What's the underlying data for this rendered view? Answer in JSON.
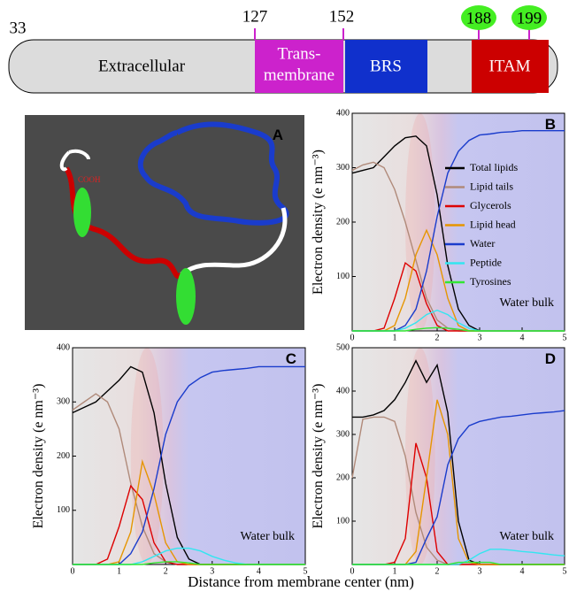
{
  "domain_diagram": {
    "positions": [
      "33",
      "127",
      "152",
      "188",
      "199"
    ],
    "extracellular": "Extracellular",
    "transmembrane": [
      "Trans-",
      "membrane"
    ],
    "brs": "BRS",
    "itam": "ITAM"
  },
  "panel_a": {
    "label": "A",
    "annotation": "COOH"
  },
  "shared_x_label": "Distance from membrane center (nm)",
  "chart_data": [
    {
      "type": "line",
      "panel_label": "B",
      "y_label": "Electron density (e nm⁻³)",
      "annotation": "Water bulk",
      "legend": "right",
      "x": [
        0,
        0.25,
        0.5,
        0.75,
        1,
        1.25,
        1.5,
        1.75,
        2,
        2.25,
        2.5,
        2.75,
        3,
        3.25,
        3.5,
        3.75,
        4,
        4.25,
        4.5,
        4.75,
        5
      ],
      "xlim": [
        0,
        5
      ],
      "xticks": [
        0,
        1,
        2,
        3,
        4,
        5
      ],
      "ylim": [
        0,
        400
      ],
      "yticks": [
        100,
        200,
        300,
        400
      ],
      "series": [
        {
          "name": "Total lipids",
          "color": "#000000",
          "values": [
            290,
            295,
            300,
            320,
            340,
            355,
            358,
            340,
            250,
            120,
            40,
            10,
            0,
            0,
            0,
            0,
            0,
            0,
            0,
            0,
            0
          ]
        },
        {
          "name": "Lipid tails",
          "color": "#b08a7a",
          "values": [
            295,
            305,
            310,
            300,
            260,
            200,
            130,
            60,
            20,
            5,
            0,
            0,
            0,
            0,
            0,
            0,
            0,
            0,
            0,
            0,
            0
          ]
        },
        {
          "name": "Glycerols",
          "color": "#dd0000",
          "values": [
            0,
            0,
            0,
            5,
            60,
            125,
            110,
            50,
            10,
            0,
            0,
            0,
            0,
            0,
            0,
            0,
            0,
            0,
            0,
            0,
            0
          ]
        },
        {
          "name": "Lipid head",
          "color": "#e69500",
          "values": [
            0,
            0,
            0,
            0,
            10,
            60,
            140,
            185,
            140,
            60,
            10,
            0,
            0,
            0,
            0,
            0,
            0,
            0,
            0,
            0,
            0
          ]
        },
        {
          "name": "Water",
          "color": "#1a3ccc",
          "values": [
            0,
            0,
            0,
            0,
            0,
            10,
            40,
            110,
            210,
            290,
            330,
            350,
            360,
            362,
            365,
            366,
            368,
            368,
            368,
            368,
            368
          ]
        },
        {
          "name": "Peptide",
          "color": "#33e6f0",
          "values": [
            0,
            0,
            0,
            0,
            0,
            5,
            15,
            30,
            38,
            30,
            15,
            5,
            0,
            0,
            0,
            0,
            0,
            0,
            0,
            0,
            0
          ]
        },
        {
          "name": "Tyrosines",
          "color": "#33e633",
          "values": [
            0,
            0,
            0,
            0,
            0,
            0,
            3,
            5,
            6,
            5,
            3,
            0,
            0,
            0,
            0,
            0,
            0,
            0,
            0,
            0,
            0
          ]
        }
      ]
    },
    {
      "type": "line",
      "panel_label": "C",
      "y_label": "Electron density (e nm⁻³)",
      "annotation": "Water bulk",
      "legend": false,
      "x": [
        0,
        0.25,
        0.5,
        0.75,
        1,
        1.25,
        1.5,
        1.75,
        2,
        2.25,
        2.5,
        2.75,
        3,
        3.25,
        3.5,
        3.75,
        4,
        4.25,
        4.5,
        4.75,
        5
      ],
      "xlim": [
        0,
        5
      ],
      "xticks": [
        0,
        1,
        2,
        3,
        4,
        5
      ],
      "ylim": [
        0,
        400
      ],
      "yticks": [
        100,
        200,
        300,
        400
      ],
      "series": [
        {
          "color": "#000000",
          "values": [
            280,
            290,
            300,
            320,
            340,
            365,
            355,
            280,
            150,
            50,
            10,
            0,
            0,
            0,
            0,
            0,
            0,
            0,
            0,
            0,
            0
          ]
        },
        {
          "color": "#b08a7a",
          "values": [
            285,
            300,
            315,
            300,
            250,
            150,
            70,
            20,
            5,
            0,
            0,
            0,
            0,
            0,
            0,
            0,
            0,
            0,
            0,
            0,
            0
          ]
        },
        {
          "color": "#dd0000",
          "values": [
            0,
            0,
            0,
            10,
            70,
            145,
            120,
            40,
            5,
            0,
            0,
            0,
            0,
            0,
            0,
            0,
            0,
            0,
            0,
            0,
            0
          ]
        },
        {
          "color": "#e69500",
          "values": [
            0,
            0,
            0,
            0,
            5,
            60,
            190,
            130,
            40,
            5,
            0,
            0,
            0,
            0,
            0,
            0,
            0,
            0,
            0,
            0,
            0
          ]
        },
        {
          "color": "#1a3ccc",
          "values": [
            0,
            0,
            0,
            0,
            0,
            20,
            60,
            140,
            240,
            300,
            330,
            345,
            355,
            358,
            360,
            362,
            365,
            365,
            365,
            365,
            365
          ]
        },
        {
          "color": "#33e6f0",
          "values": [
            0,
            0,
            0,
            0,
            0,
            0,
            5,
            15,
            25,
            30,
            30,
            25,
            15,
            8,
            3,
            0,
            0,
            0,
            0,
            0,
            0
          ]
        },
        {
          "color": "#33e633",
          "values": [
            0,
            0,
            0,
            0,
            0,
            0,
            0,
            3,
            5,
            5,
            3,
            0,
            0,
            0,
            0,
            0,
            0,
            0,
            0,
            0,
            0
          ]
        }
      ]
    },
    {
      "type": "line",
      "panel_label": "D",
      "y_label": "Electron density (e nm⁻³)",
      "annotation": "Water bulk",
      "legend": false,
      "x": [
        0,
        0.25,
        0.5,
        0.75,
        1,
        1.25,
        1.5,
        1.75,
        2,
        2.25,
        2.5,
        2.75,
        3,
        3.25,
        3.5,
        3.75,
        4,
        4.25,
        4.5,
        4.75,
        5
      ],
      "xlim": [
        0,
        5
      ],
      "xticks": [
        0,
        1,
        2,
        3,
        4,
        5
      ],
      "ylim": [
        0,
        500
      ],
      "yticks": [
        100,
        200,
        300,
        400,
        500
      ],
      "series": [
        {
          "color": "#000000",
          "values": [
            340,
            340,
            345,
            355,
            380,
            420,
            470,
            420,
            460,
            350,
            100,
            10,
            0,
            0,
            0,
            0,
            0,
            0,
            0,
            0,
            0
          ]
        },
        {
          "color": "#b08a7a",
          "values": [
            200,
            335,
            340,
            340,
            330,
            250,
            120,
            40,
            10,
            0,
            0,
            0,
            0,
            0,
            0,
            0,
            0,
            0,
            0,
            0,
            0
          ]
        },
        {
          "color": "#dd0000",
          "values": [
            0,
            0,
            0,
            0,
            5,
            60,
            280,
            200,
            30,
            0,
            0,
            0,
            0,
            0,
            0,
            0,
            0,
            0,
            0,
            0,
            0
          ]
        },
        {
          "color": "#e69500",
          "values": [
            0,
            0,
            0,
            0,
            0,
            0,
            30,
            200,
            380,
            300,
            60,
            5,
            0,
            0,
            0,
            0,
            0,
            0,
            0,
            0,
            0
          ]
        },
        {
          "color": "#1a3ccc",
          "values": [
            0,
            0,
            0,
            0,
            0,
            0,
            5,
            60,
            110,
            230,
            290,
            320,
            330,
            335,
            340,
            342,
            345,
            348,
            350,
            352,
            355
          ]
        },
        {
          "color": "#33e6f0",
          "values": [
            0,
            0,
            0,
            0,
            0,
            0,
            0,
            0,
            0,
            0,
            0,
            10,
            25,
            35,
            35,
            33,
            30,
            28,
            25,
            22,
            20
          ]
        },
        {
          "color": "#33e633",
          "values": [
            0,
            0,
            0,
            0,
            0,
            0,
            0,
            0,
            0,
            0,
            5,
            5,
            5,
            5,
            0,
            0,
            0,
            0,
            0,
            0,
            0
          ]
        }
      ]
    }
  ]
}
